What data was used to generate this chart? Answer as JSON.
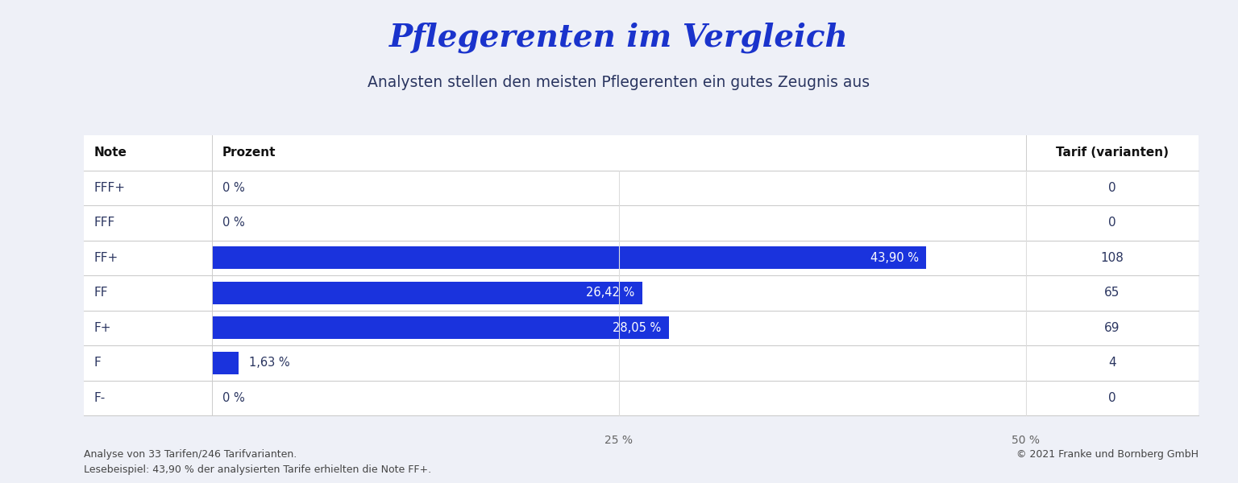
{
  "title": "Pflegerenten im Vergleich",
  "subtitle": "Analysten stellen den meisten Pflegerenten ein gutes Zeugnis aus",
  "title_color": "#1a33cc",
  "subtitle_color": "#2a3560",
  "background_color": "#eef0f7",
  "table_background": "#ffffff",
  "bar_color": "#1a33dd",
  "text_color": "#2a3560",
  "header_color": "#111111",
  "categories": [
    "FFF+",
    "FFF",
    "FF+",
    "FF",
    "F+",
    "F",
    "F-"
  ],
  "values": [
    0,
    0,
    43.9,
    26.42,
    28.05,
    1.63,
    0
  ],
  "tarife": [
    0,
    0,
    108,
    65,
    69,
    4,
    0
  ],
  "labels": [
    "0 %",
    "0 %",
    "43,90 %",
    "26,42 %",
    "28,05 %",
    "1,63 %",
    "0 %"
  ],
  "col_note": "Note",
  "col_prozent": "Prozent",
  "col_tarif": "Tarif (varianten)",
  "xtick_vals": [
    25,
    50
  ],
  "xtick_labels": [
    "25 %",
    "50 %"
  ],
  "footnote_line1": "Analyse von 33 Tarifen/246 Tarifvarianten.",
  "footnote_line2": "Lesebeispiel: 43,90 % der analysierten Tarife erhielten die Note FF+.",
  "copyright": "© 2021 Franke und Bornberg GmbH",
  "max_percent": 50.0
}
